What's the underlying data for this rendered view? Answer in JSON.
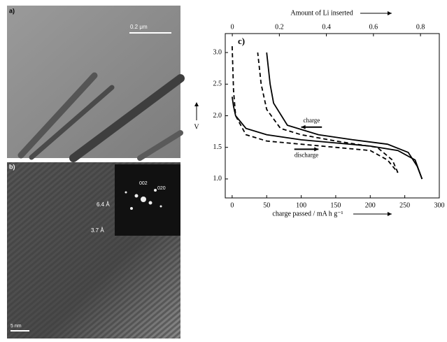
{
  "panels": {
    "a": {
      "label": "a)",
      "scale_bar": "0.2 μm"
    },
    "b": {
      "label": "b)",
      "scale_bar": "5 nm",
      "spacing_1": "6.4 Å",
      "spacing_2": "3.7 Å",
      "spot_1": "002",
      "spot_2": "020"
    }
  },
  "chart_data": {
    "type": "line",
    "panel_label": "c)",
    "x_label": "charge passed / mA h g⁻¹",
    "y_label": "V",
    "x2_label": "Amount of Li inserted",
    "xlim": [
      -10,
      300
    ],
    "xticks": [
      0,
      50,
      100,
      150,
      200,
      250,
      300
    ],
    "ylim": [
      0.7,
      3.3
    ],
    "yticks": [
      {
        "value": 1,
        "label": "1.0"
      },
      1.5,
      {
        "value": 2,
        "label": "2.0"
      },
      2.5,
      {
        "value": 3,
        "label": "3.0"
      }
    ],
    "x2lim": [
      -0.03,
      0.88
    ],
    "x2ticks": [
      0,
      0.2,
      0.4,
      0.6,
      0.8
    ],
    "annotations": [
      {
        "text": "charge",
        "direction": "left",
        "x": [
          130,
          100
        ],
        "y": 1.82
      },
      {
        "text": "discharge",
        "direction": "right",
        "x": [
          90,
          125
        ],
        "y": 1.47
      }
    ],
    "series": [
      {
        "color": "#000",
        "dash": false,
        "x": [
          0,
          2,
          5,
          20,
          50,
          100,
          150,
          200,
          240,
          265,
          275
        ],
        "values": [
          2.3,
          2.15,
          2.0,
          1.8,
          1.7,
          1.62,
          1.57,
          1.52,
          1.45,
          1.3,
          1.0
        ]
      },
      {
        "color": "#000",
        "dash": false,
        "x": [
          275,
          268,
          255,
          225,
          175,
          125,
          80,
          60,
          55,
          50
        ],
        "values": [
          1.0,
          1.2,
          1.42,
          1.55,
          1.62,
          1.7,
          1.85,
          2.2,
          2.5,
          3.0
        ]
      },
      {
        "color": "#000",
        "dash": true,
        "x": [
          0,
          2,
          5,
          20,
          50,
          100,
          150,
          200,
          225,
          240
        ],
        "values": [
          3.1,
          2.4,
          2.0,
          1.7,
          1.6,
          1.55,
          1.5,
          1.45,
          1.3,
          1.1
        ]
      },
      {
        "color": "#000",
        "dash": true,
        "x": [
          240,
          232,
          210,
          150,
          100,
          70,
          50,
          42,
          37
        ],
        "values": [
          1.1,
          1.3,
          1.5,
          1.6,
          1.7,
          1.8,
          2.1,
          2.5,
          3.0
        ]
      }
    ]
  }
}
